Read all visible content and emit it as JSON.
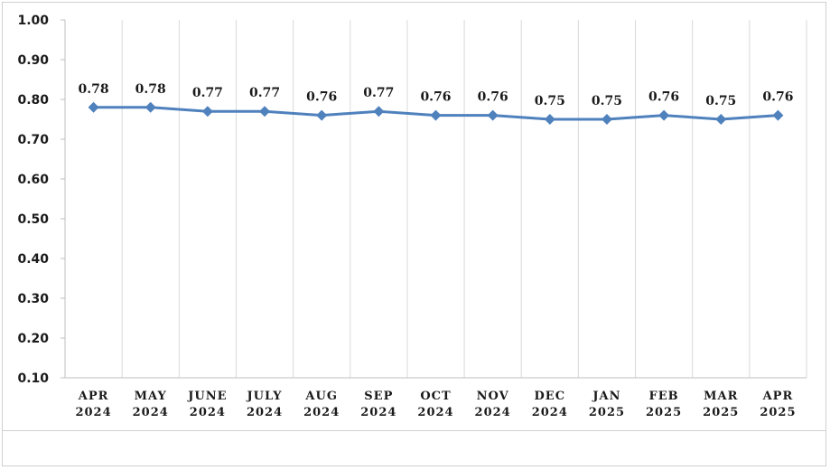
{
  "chart_data": {
    "type": "line",
    "categories": [
      [
        "APR",
        "2024"
      ],
      [
        "MAY",
        "2024"
      ],
      [
        "JUNE",
        "2024"
      ],
      [
        "JULY",
        "2024"
      ],
      [
        "AUG",
        "2024"
      ],
      [
        "SEP",
        "2024"
      ],
      [
        "OCT",
        "2024"
      ],
      [
        "NOV",
        "2024"
      ],
      [
        "DEC",
        "2024"
      ],
      [
        "JAN",
        "2025"
      ],
      [
        "FEB",
        "2025"
      ],
      [
        "MAR",
        "2025"
      ],
      [
        "APR",
        "2025"
      ]
    ],
    "series": [
      {
        "values": [
          0.78,
          0.78,
          0.77,
          0.77,
          0.76,
          0.77,
          0.76,
          0.76,
          0.75,
          0.75,
          0.76,
          0.75,
          0.76
        ]
      }
    ],
    "data_labels": [
      "0.78",
      "0.78",
      "0.77",
      "0.77",
      "0.76",
      "0.77",
      "0.76",
      "0.76",
      "0.75",
      "0.75",
      "0.76",
      "0.75",
      "0.76"
    ],
    "yticks": [
      "0.10",
      "0.20",
      "0.30",
      "0.40",
      "0.50",
      "0.60",
      "0.70",
      "0.80",
      "0.90",
      "1.00"
    ],
    "ylim": [
      0.1,
      1.0
    ],
    "grid": "vertical",
    "line_color": "#4f81bd"
  }
}
